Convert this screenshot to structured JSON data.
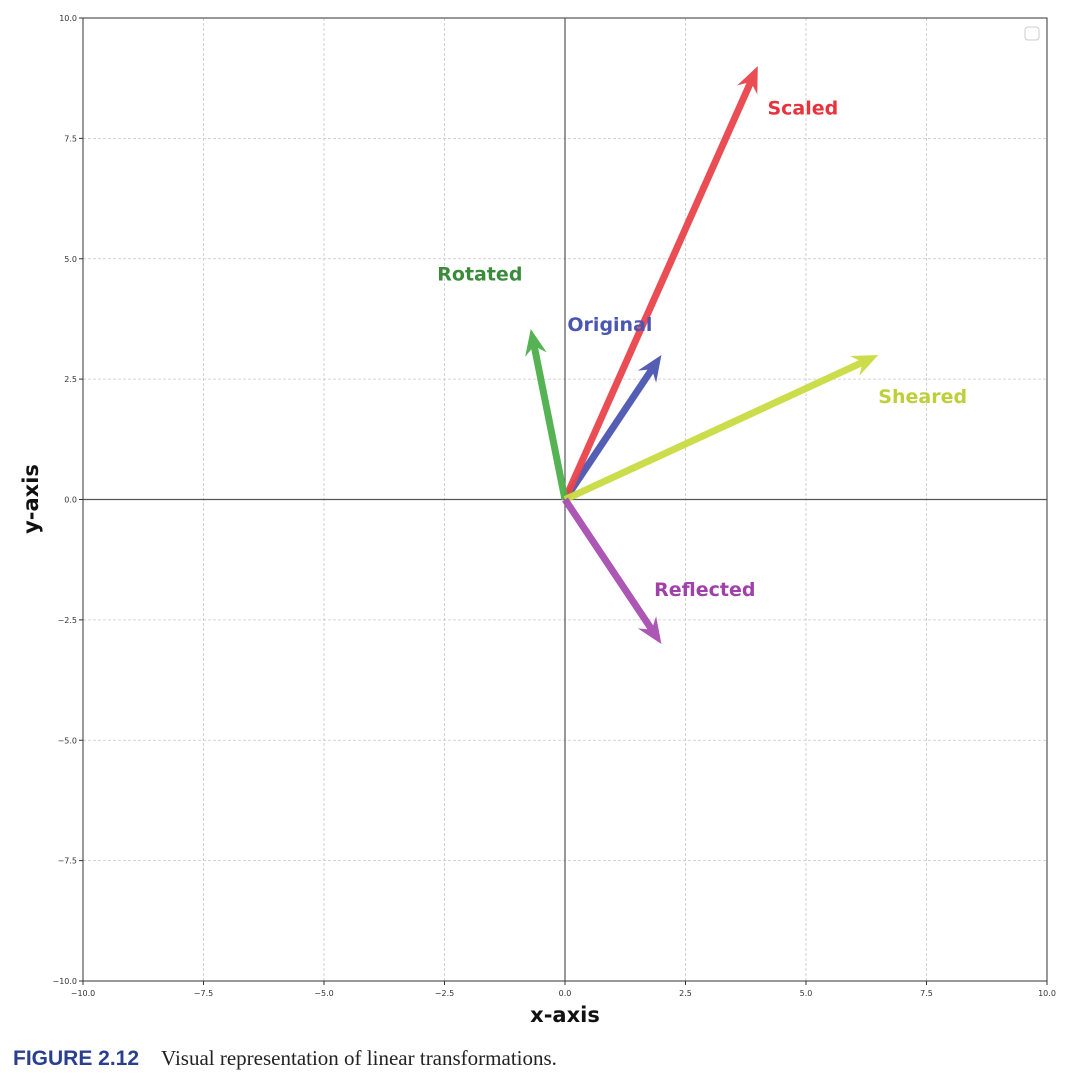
{
  "chart_data": {
    "type": "vector",
    "title": "",
    "xlabel": "x-axis",
    "ylabel": "y-axis",
    "xlim": [
      -10,
      10
    ],
    "ylim": [
      -10,
      10
    ],
    "grid": true,
    "legend": {
      "placement": "top-right",
      "entries": []
    },
    "xticks": [
      "−10.0",
      "−7.5",
      "−5.0",
      "−2.5",
      "0.0",
      "2.5",
      "5.0",
      "7.5",
      "10.0"
    ],
    "yticks": [
      "−10.0",
      "−7.5",
      "−5.0",
      "−2.5",
      "0.0",
      "2.5",
      "5.0",
      "7.5",
      "10.0"
    ],
    "tick_values": [
      -10,
      -7.5,
      -5,
      -2.5,
      0,
      2.5,
      5,
      7.5,
      10
    ],
    "vectors": [
      {
        "name": "Original",
        "origin": [
          0,
          0
        ],
        "end": [
          2,
          3
        ],
        "color": "#4b55b0",
        "label_color": "#4b56b3",
        "label_at": [
          0.05,
          3.5
        ]
      },
      {
        "name": "Scaled",
        "origin": [
          0,
          0
        ],
        "end": [
          4,
          9
        ],
        "color": "#e9434b",
        "label_color": "#e8323c",
        "label_at": [
          4.2,
          8.0
        ]
      },
      {
        "name": "Rotated",
        "origin": [
          0,
          0
        ],
        "end": [
          -0.71,
          3.54
        ],
        "color": "#4caf4a",
        "label_color": "#3a8c3c",
        "label_at": [
          -2.65,
          4.55
        ]
      },
      {
        "name": "Sheared",
        "origin": [
          0,
          0
        ],
        "end": [
          6.5,
          3
        ],
        "color": "#c9db42",
        "label_color": "#bfcf3a",
        "label_at": [
          6.5,
          2.0
        ]
      },
      {
        "name": "Reflected",
        "origin": [
          0,
          0
        ],
        "end": [
          2,
          -3
        ],
        "color": "#a84db2",
        "label_color": "#a040aa",
        "label_at": [
          1.85,
          -2.0
        ]
      }
    ]
  },
  "caption": {
    "number": "FIGURE 2.12",
    "text": "Visual representation of linear transformations."
  }
}
